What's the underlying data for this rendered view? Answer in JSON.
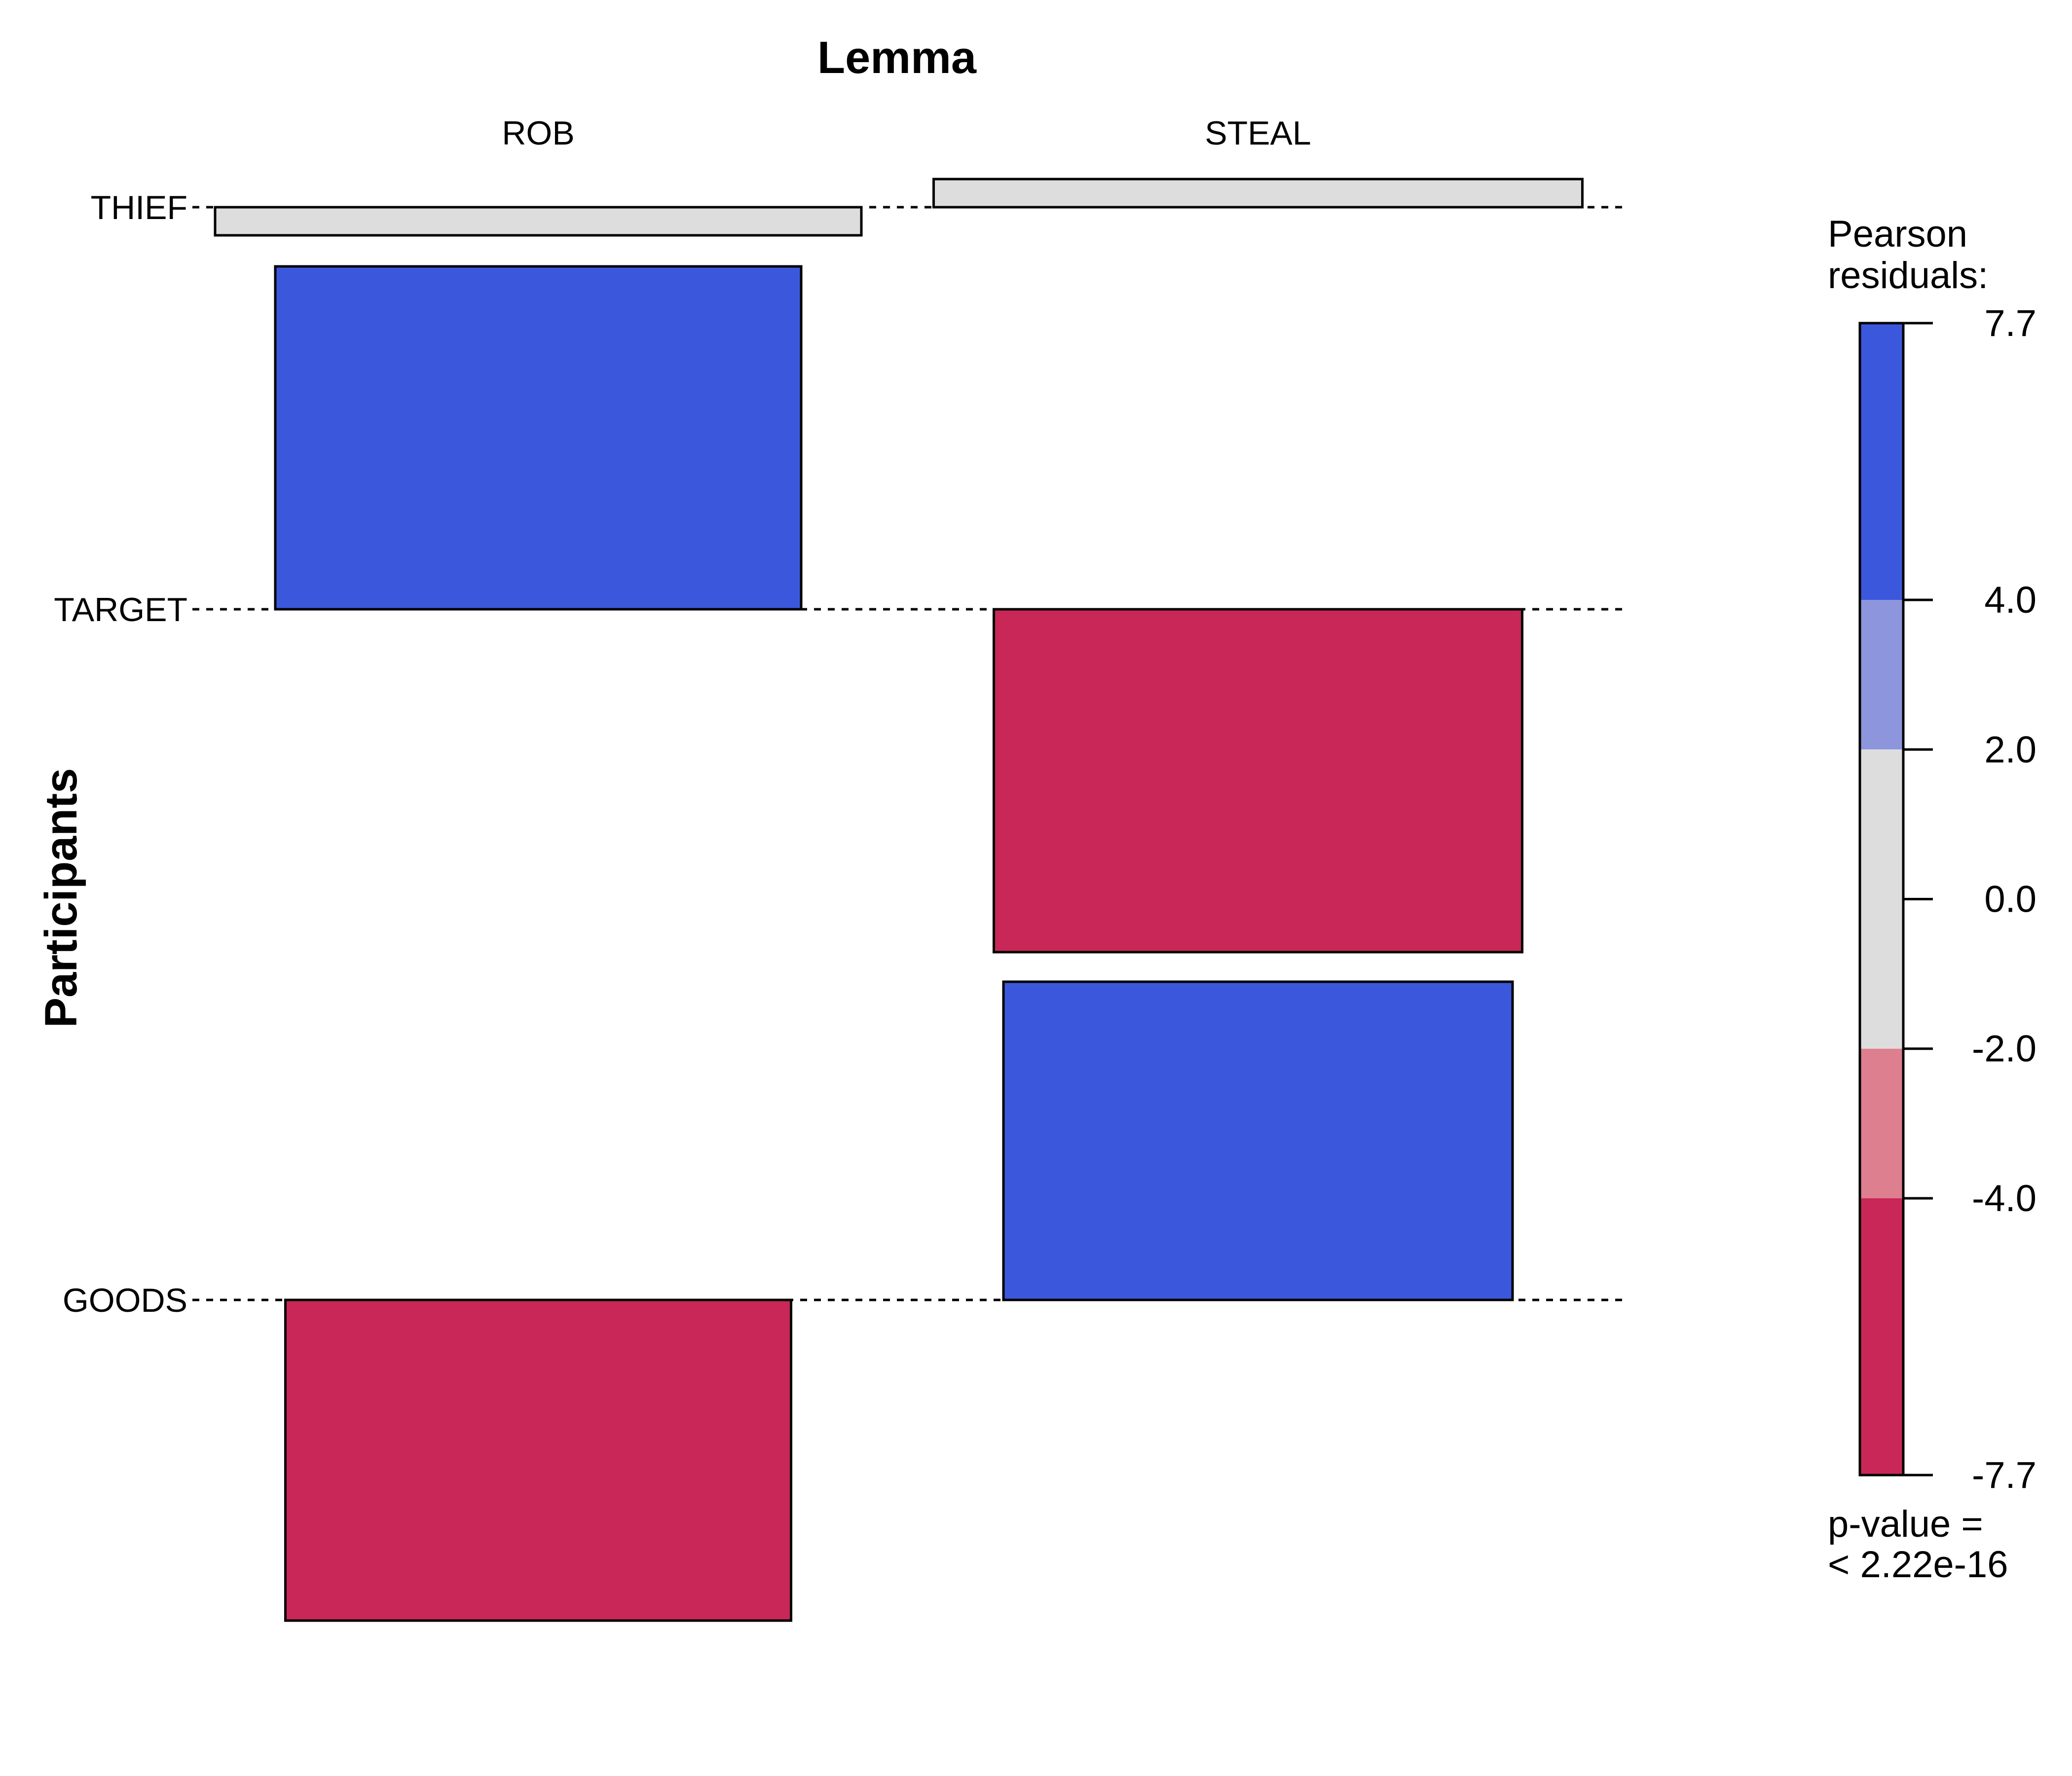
{
  "chart_data": {
    "type": "association_plot",
    "title": "Lemma",
    "xlabel": "Lemma",
    "ylabel": "Participants",
    "columns": [
      "ROB",
      "STEAL"
    ],
    "rows": [
      "THIEF",
      "TARGET",
      "GOODS"
    ],
    "cells": [
      {
        "row": "THIEF",
        "column": "ROB",
        "residual": -0.6,
        "color": "#DDDDDD"
      },
      {
        "row": "THIEF",
        "column": "STEAL",
        "residual": 0.6,
        "color": "#DDDDDD"
      },
      {
        "row": "TARGET",
        "column": "ROB",
        "residual": 7.7,
        "color": "#3B58DD"
      },
      {
        "row": "TARGET",
        "column": "STEAL",
        "residual": -7.7,
        "color": "#C82757"
      },
      {
        "row": "GOODS",
        "column": "ROB",
        "residual": -7.0,
        "color": "#C82757"
      },
      {
        "row": "GOODS",
        "column": "STEAL",
        "residual": 7.0,
        "color": "#3B58DD"
      }
    ],
    "legend": {
      "title_line1": "Pearson",
      "title_line2": "residuals:",
      "ticks": [
        "7.7",
        "4.0",
        "2.0",
        "0.0",
        "-2.0",
        "-4.0",
        "-7.7"
      ],
      "bands": [
        {
          "from": 4.0,
          "to": 7.7,
          "color": "#3B58DD"
        },
        {
          "from": 2.0,
          "to": 4.0,
          "color": "#8D96DD"
        },
        {
          "from": -2.0,
          "to": 2.0,
          "color": "#DDDDDD"
        },
        {
          "from": -4.0,
          "to": -2.0,
          "color": "#DD7F8F"
        },
        {
          "from": -7.7,
          "to": -4.0,
          "color": "#C82757"
        }
      ],
      "pvalue_line1": "p-value =",
      "pvalue_line2": "< 2.22e-16"
    }
  }
}
